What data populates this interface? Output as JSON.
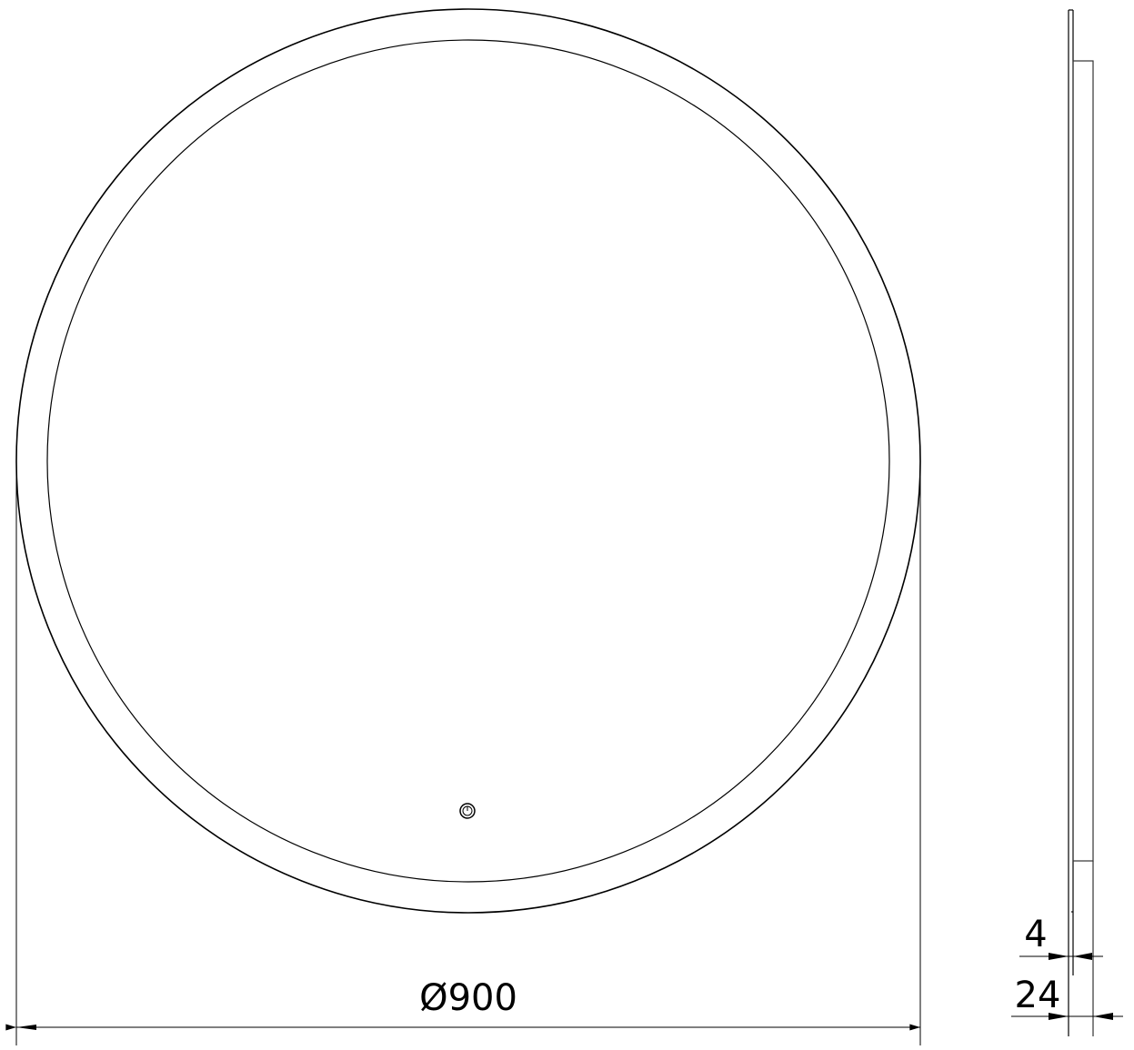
{
  "front_view": {
    "diameter_label": "Ø900",
    "power_button_icon": "power-icon"
  },
  "side_view": {
    "glass_thickness_label": "4",
    "total_depth_label": "24"
  },
  "colors": {
    "line": "#000000",
    "background": "#ffffff"
  }
}
